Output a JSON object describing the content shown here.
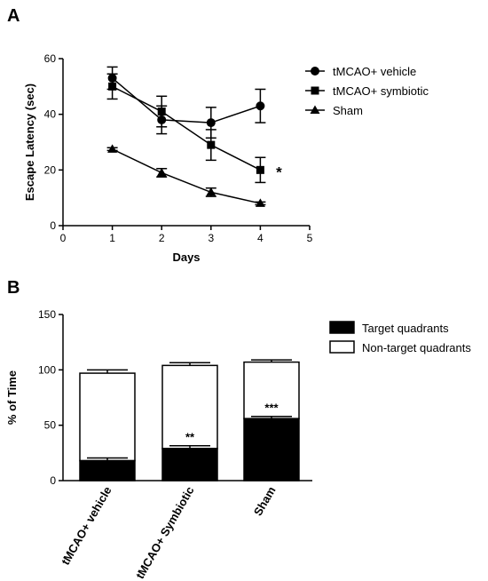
{
  "chart_data": [
    {
      "type": "line",
      "panel": "A",
      "xlabel": "Days",
      "ylabel": "Escape Latency (sec)",
      "xlim": [
        0,
        5
      ],
      "ylim": [
        0,
        60
      ],
      "xticks": [
        "0",
        "1",
        "2",
        "3",
        "4",
        "5"
      ],
      "yticks": [
        "0",
        "20",
        "40",
        "60"
      ],
      "grid": false,
      "legend": "top-right",
      "x": [
        1,
        2,
        3,
        4
      ],
      "series": [
        {
          "name": "tMCAO+ vehicle",
          "marker": "circle",
          "values": [
            53,
            38,
            37,
            43
          ],
          "errors": [
            4,
            5,
            5.5,
            6
          ]
        },
        {
          "name": "tMCAO+ symbiotic",
          "marker": "square",
          "values": [
            50,
            41,
            29,
            20
          ],
          "errors": [
            4.5,
            5.5,
            5.5,
            4.5
          ]
        },
        {
          "name": "Sham",
          "marker": "triangle",
          "values": [
            27.5,
            19,
            12,
            8
          ],
          "errors": [
            0.5,
            1.5,
            1.5,
            0.5
          ]
        }
      ],
      "annotations": [
        {
          "x": 4,
          "text": "*"
        }
      ]
    },
    {
      "type": "bar",
      "stacked": true,
      "panel": "B",
      "ylabel": "% of Time",
      "ylim": [
        0,
        150
      ],
      "yticks": [
        "0",
        "50",
        "100",
        "150"
      ],
      "categories": [
        "tMCAO+ vehicle",
        "tMCAO+ Symbiotic",
        "Sham"
      ],
      "legend": "top-right",
      "series": [
        {
          "name": "Target quadrants",
          "color": "#000000",
          "values": [
            18,
            29,
            56
          ],
          "errors": [
            2.5,
            2.5,
            2
          ]
        },
        {
          "name": "Non-target quadrants",
          "color": "#ffffff",
          "values": [
            79,
            75,
            51
          ],
          "errors": [
            3,
            2.5,
            2
          ]
        }
      ],
      "annotations": [
        {
          "category": "tMCAO+ Symbiotic",
          "text": "**"
        },
        {
          "category": "Sham",
          "text": "***"
        }
      ]
    }
  ]
}
